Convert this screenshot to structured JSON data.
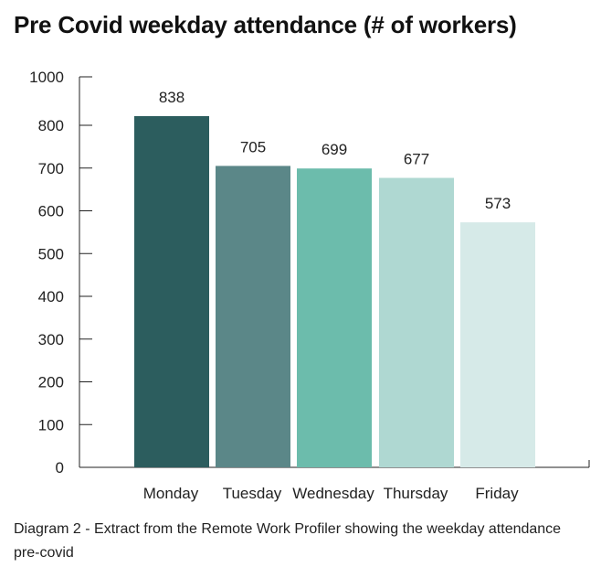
{
  "chart_data": {
    "type": "bar",
    "title": "Pre Covid weekday attendance (# of workers)",
    "categories": [
      "Monday",
      "Tuesday",
      "Wednesday",
      "Thursday",
      "Friday"
    ],
    "values": [
      838,
      705,
      699,
      677,
      573
    ],
    "value_labels": [
      "838",
      "705",
      "699",
      "677",
      "573"
    ],
    "y_ticks": [
      0,
      100,
      200,
      300,
      400,
      500,
      600,
      700,
      800,
      1000
    ],
    "y_tick_labels": [
      "0",
      "100",
      "200",
      "300",
      "400",
      "500",
      "600",
      "700",
      "800",
      "1000"
    ],
    "xlabel": "",
    "ylabel": "",
    "legend": "none",
    "grid": false,
    "bar_colors": [
      "#2c5d5e",
      "#5b8788",
      "#6cbcac",
      "#afd8d2",
      "#d6eae8"
    ],
    "axis_color": "#222222"
  },
  "caption": "Diagram 2 - Extract from the Remote Work Profiler showing the weekday attendance pre-covid"
}
